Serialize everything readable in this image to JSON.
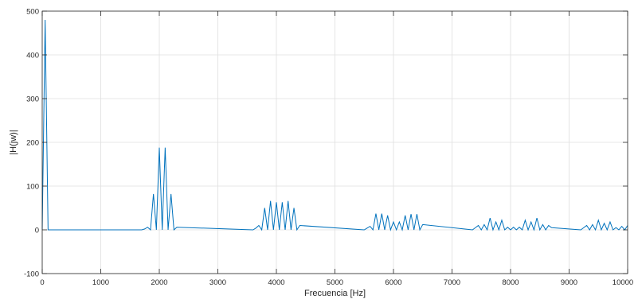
{
  "chart_data": {
    "type": "line",
    "title": "",
    "xlabel": "Frecuencia [Hz]",
    "ylabel": "|H(jw)|",
    "xlim": [
      0,
      10000
    ],
    "ylim": [
      -100,
      500
    ],
    "xticks": [
      0,
      1000,
      2000,
      3000,
      4000,
      5000,
      6000,
      7000,
      8000,
      9000,
      10000
    ],
    "yticks": [
      -100,
      0,
      100,
      200,
      300,
      400,
      500
    ],
    "grid": true,
    "line_color": "#0072BD",
    "series": [
      {
        "x": [
          0,
          50,
          100,
          1700,
          1750,
          1800,
          1850,
          1900,
          1950,
          2000,
          2050,
          2100,
          2150,
          2200,
          2250,
          2300,
          3600,
          3650,
          3700,
          3750,
          3800,
          3850,
          3900,
          3950,
          4000,
          4050,
          4100,
          4150,
          4200,
          4250,
          4300,
          4350,
          4400,
          5500,
          5550,
          5600,
          5650,
          5700,
          5750,
          5800,
          5850,
          5900,
          5950,
          6000,
          6050,
          6100,
          6150,
          6200,
          6250,
          6300,
          6350,
          6400,
          6450,
          6500,
          7350,
          7400,
          7450,
          7500,
          7550,
          7600,
          7650,
          7700,
          7750,
          7800,
          7850,
          7900,
          7950,
          8000,
          8050,
          8100,
          8150,
          8200,
          8250,
          8300,
          8350,
          8400,
          8450,
          8500,
          8550,
          8600,
          8650,
          8700,
          9200,
          9250,
          9300,
          9350,
          9400,
          9450,
          9500,
          9550,
          9600,
          9650,
          9700,
          9750,
          9800,
          9850,
          9900,
          9950,
          10000
        ],
        "y": [
          0,
          480,
          0,
          0,
          2,
          6,
          0,
          82,
          0,
          188,
          0,
          188,
          0,
          82,
          0,
          6,
          0,
          4,
          10,
          0,
          50,
          0,
          66,
          0,
          63,
          0,
          63,
          0,
          66,
          0,
          50,
          0,
          10,
          0,
          4,
          8,
          0,
          37,
          0,
          37,
          0,
          33,
          0,
          18,
          0,
          18,
          0,
          33,
          0,
          36,
          0,
          36,
          0,
          12,
          0,
          5,
          10,
          0,
          12,
          0,
          27,
          0,
          18,
          0,
          22,
          0,
          6,
          0,
          6,
          0,
          6,
          0,
          22,
          0,
          18,
          0,
          27,
          0,
          12,
          0,
          10,
          5,
          0,
          5,
          10,
          0,
          12,
          0,
          22,
          0,
          15,
          0,
          18,
          0,
          5,
          0,
          8,
          0,
          10
        ]
      }
    ]
  }
}
